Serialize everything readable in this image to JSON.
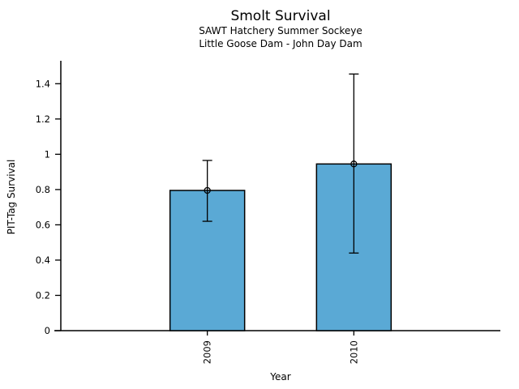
{
  "chart": {
    "title": "Smolt Survival",
    "subtitle1": "SAWT Hatchery Summer Sockeye",
    "subtitle2": "Little Goose Dam - John Day Dam",
    "xlabel": "Year",
    "ylabel": "PIT-Tag Survival"
  },
  "chart_data": {
    "type": "bar",
    "title": "Smolt Survival",
    "subtitle1": "SAWT Hatchery Summer Sockeye",
    "subtitle2": "Little Goose Dam - John Day Dam",
    "xlabel": "Year",
    "ylabel": "PIT-Tag Survival",
    "categories": [
      "2009",
      "2010"
    ],
    "values": [
      0.795,
      0.945
    ],
    "error_low": [
      0.62,
      0.44
    ],
    "error_high": [
      0.965,
      1.455
    ],
    "yticks": [
      0,
      0.2,
      0.4,
      0.6,
      0.8,
      1,
      1.2,
      1.4
    ],
    "ylim": [
      0,
      1.53
    ],
    "grid": false,
    "legend": null,
    "bar_color": "#5AA9D5",
    "bar_edge_color": "#000000",
    "error_color": "#000000",
    "marker": "open-circle",
    "background": "#FFFFFF"
  }
}
